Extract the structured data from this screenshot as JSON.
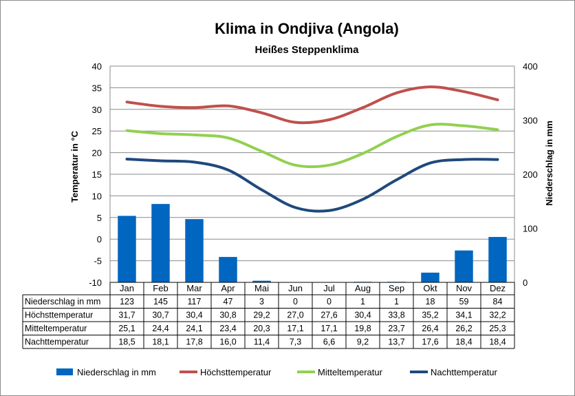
{
  "chart_data": {
    "type": "bar",
    "title": "Klima in Ondjiva (Angola)",
    "subtitle": "Heißes Steppenklima",
    "ylabel_left": "Temperatur in °C",
    "ylabel_right": "Niederschlag in mm",
    "ylim_left": [
      -10,
      40
    ],
    "yticks_left": [
      40,
      35,
      30,
      25,
      20,
      15,
      10,
      5,
      0,
      -5,
      -10
    ],
    "ylim_right": [
      0,
      400
    ],
    "yticks_right": [
      400,
      300,
      200,
      100,
      0
    ],
    "grid": true,
    "legend_position": "bottom",
    "categories": [
      "Jan",
      "Feb",
      "Mar",
      "Apr",
      "Mai",
      "Jun",
      "Jul",
      "Aug",
      "Sep",
      "Okt",
      "Nov",
      "Dez"
    ],
    "series": [
      {
        "name": "Niederschlag in mm",
        "type": "bar",
        "axis": "right",
        "color": "#0066C0",
        "values": [
          123,
          145,
          117,
          47,
          3,
          0,
          0,
          1,
          1,
          18,
          59,
          84
        ]
      },
      {
        "name": "Höchsttemperatur",
        "type": "line",
        "axis": "left",
        "color": "#C0504D",
        "values": [
          31.7,
          30.7,
          30.4,
          30.8,
          29.2,
          27.0,
          27.6,
          30.4,
          33.8,
          35.2,
          34.1,
          32.2
        ]
      },
      {
        "name": "Mitteltemperatur",
        "type": "line",
        "axis": "left",
        "color": "#92D050",
        "values": [
          25.1,
          24.4,
          24.1,
          23.4,
          20.3,
          17.1,
          17.1,
          19.8,
          23.7,
          26.4,
          26.2,
          25.3
        ]
      },
      {
        "name": "Nachttemperatur",
        "type": "line",
        "axis": "left",
        "color": "#1F497D",
        "values": [
          18.5,
          18.1,
          17.8,
          16.0,
          11.4,
          7.3,
          6.6,
          9.2,
          13.7,
          17.6,
          18.4,
          18.4
        ]
      }
    ],
    "table": [
      {
        "label": "Niederschlag in mm",
        "cells": [
          "123",
          "145",
          "117",
          "47",
          "3",
          "0",
          "0",
          "1",
          "1",
          "18",
          "59",
          "84"
        ]
      },
      {
        "label": "Höchsttemperatur",
        "cells": [
          "31,7",
          "30,7",
          "30,4",
          "30,8",
          "29,2",
          "27,0",
          "27,6",
          "30,4",
          "33,8",
          "35,2",
          "34,1",
          "32,2"
        ]
      },
      {
        "label": "Mitteltemperatur",
        "cells": [
          "25,1",
          "24,4",
          "24,1",
          "23,4",
          "20,3",
          "17,1",
          "17,1",
          "19,8",
          "23,7",
          "26,4",
          "26,2",
          "25,3"
        ]
      },
      {
        "label": "Nachttemperatur",
        "cells": [
          "18,5",
          "18,1",
          "17,8",
          "16,0",
          "11,4",
          "7,3",
          "6,6",
          "9,2",
          "13,7",
          "17,6",
          "18,4",
          "18,4"
        ]
      }
    ]
  }
}
